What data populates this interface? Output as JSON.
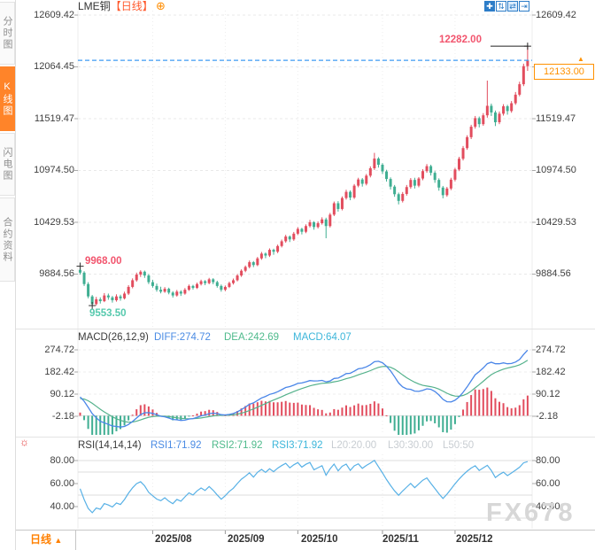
{
  "header": {
    "symbol": "LME铜",
    "period_tag": "【日线】",
    "add_button": "⊕"
  },
  "sidebar": {
    "active_index": 1,
    "tabs": [
      {
        "label": "分时图"
      },
      {
        "label": "K线图"
      },
      {
        "label": "闪电图"
      },
      {
        "label": "合约资料"
      }
    ]
  },
  "toolbar": {
    "icons": [
      {
        "name": "pan-crosshair-icon",
        "glyph": "✚"
      },
      {
        "name": "axis-zoom-icon",
        "glyph": "⇅"
      },
      {
        "name": "scale-toggle-icon",
        "glyph": "⇄"
      },
      {
        "name": "collapse-panel-icon",
        "glyph": "⇥"
      }
    ]
  },
  "main_chart": {
    "axis_left": [
      "12609.42",
      "12064.45",
      "11519.47",
      "10974.50",
      "10429.53",
      "9884.56"
    ],
    "axis_right": [
      "12609.42",
      "11519.47",
      "10974.50",
      "10429.53",
      "9884.56"
    ],
    "price_box_value": "12133.00",
    "price_box_arrow": "▲",
    "session_high_label": "12282.00",
    "first_high_label": "9968.00",
    "low_label": "9553.50"
  },
  "macd_panel": {
    "title": "MACD(26,12,9)",
    "diff": "DIFF:274.72",
    "dea": "DEA:242.69",
    "macd": "MACD:64.07",
    "axis": [
      "274.72",
      "182.42",
      "90.12",
      "-2.18"
    ]
  },
  "rsi_panel": {
    "icon": "☼",
    "title": "RSI(14,14,14)",
    "rsi1": "RSI1:71.92",
    "rsi2": "RSI2:71.92",
    "rsi3": "RSI3:71.92",
    "l20": "L20:20.00",
    "l30": "L30:30.00",
    "l50": "L50:50",
    "axis": [
      "80.00",
      "60.00",
      "40.00"
    ]
  },
  "bottom_bar": {
    "period": "日线",
    "arrow": "▲",
    "dates": [
      "2025/08",
      "2025/09",
      "2025/10",
      "2025/11",
      "2025/12"
    ]
  },
  "watermark": "FX678",
  "colors": {
    "up": "#e24d5e",
    "down": "#3fae92",
    "accent_orange": "#ff8a00",
    "dashed_line_blue": "#3e9bf4",
    "diff_blue": "#4a86e8",
    "dea_green": "#55b28c",
    "rsi_blue": "#58b1e6",
    "label_red": "#f2556e",
    "label_green": "#56c9ad",
    "grid": "#e9e9e9",
    "tick": "#aaaaaa"
  },
  "chart_data": {
    "type": "candlestick",
    "title": "LME铜 日线",
    "price_levels": [
      12609.42,
      12064.45,
      11519.47,
      10974.5,
      10429.53,
      9884.56
    ],
    "macd_levels": [
      274.72,
      182.42,
      90.12,
      -2.18
    ],
    "rsi_axis_levels": [
      80,
      60,
      40
    ],
    "rsi_guide_levels": [
      80,
      70,
      50,
      30
    ],
    "month_ticks": {
      "labels": [
        "2025/08",
        "2025/09",
        "2025/10",
        "2025/11",
        "2025/12"
      ],
      "indices": [
        18,
        36,
        54,
        75,
        93
      ]
    },
    "current_price": 12133.0,
    "session_high": 12282.0,
    "first_high": 9968.0,
    "first_high_index": 0,
    "low": 9553.5,
    "low_index": 3,
    "indicators": {
      "macd_params": [
        26,
        12,
        9
      ],
      "macd_values": {
        "diff": 274.72,
        "dea": 242.69,
        "macd": 64.07
      },
      "rsi_params": [
        14,
        14,
        14
      ],
      "rsi_values": [
        71.92,
        71.92,
        71.92
      ],
      "rsi_lines": {
        "l20": 20.0,
        "l30": 30.0,
        "l50": 50
      },
      "seeds": {
        "ema12": 9940,
        "ema26": 9852,
        "dea": 70,
        "rsi_gain": 25,
        "rsi_loss": 20
      }
    },
    "candles": [
      [
        9930,
        9968,
        9880,
        9900
      ],
      [
        9900,
        9915,
        9760,
        9780
      ],
      [
        9780,
        9800,
        9630,
        9650
      ],
      [
        9650,
        9665,
        9553.5,
        9570
      ],
      [
        9570,
        9645,
        9555,
        9620
      ],
      [
        9620,
        9640,
        9575,
        9600
      ],
      [
        9600,
        9685,
        9590,
        9660
      ],
      [
        9660,
        9680,
        9615,
        9640
      ],
      [
        9640,
        9655,
        9585,
        9610
      ],
      [
        9610,
        9672,
        9595,
        9650
      ],
      [
        9650,
        9668,
        9605,
        9630
      ],
      [
        9630,
        9700,
        9618,
        9680
      ],
      [
        9680,
        9768,
        9665,
        9750
      ],
      [
        9750,
        9840,
        9735,
        9820
      ],
      [
        9820,
        9900,
        9805,
        9880
      ],
      [
        9880,
        9925,
        9855,
        9910
      ],
      [
        9910,
        9922,
        9845,
        9870
      ],
      [
        9870,
        9885,
        9780,
        9800
      ],
      [
        9800,
        9825,
        9742,
        9760
      ],
      [
        9760,
        9785,
        9700,
        9720
      ],
      [
        9720,
        9752,
        9682,
        9700
      ],
      [
        9700,
        9748,
        9688,
        9730
      ],
      [
        9730,
        9742,
        9672,
        9690
      ],
      [
        9690,
        9705,
        9638,
        9660
      ],
      [
        9660,
        9718,
        9648,
        9700
      ],
      [
        9700,
        9715,
        9655,
        9680
      ],
      [
        9680,
        9738,
        9668,
        9720
      ],
      [
        9720,
        9775,
        9708,
        9760
      ],
      [
        9760,
        9772,
        9722,
        9740
      ],
      [
        9740,
        9795,
        9728,
        9780
      ],
      [
        9780,
        9826,
        9765,
        9810
      ],
      [
        9810,
        9822,
        9768,
        9790
      ],
      [
        9790,
        9845,
        9778,
        9830
      ],
      [
        9830,
        9842,
        9778,
        9800
      ],
      [
        9800,
        9815,
        9742,
        9760
      ],
      [
        9760,
        9775,
        9700,
        9720
      ],
      [
        9720,
        9765,
        9705,
        9750
      ],
      [
        9750,
        9805,
        9738,
        9790
      ],
      [
        9790,
        9838,
        9775,
        9820
      ],
      [
        9820,
        9885,
        9808,
        9870
      ],
      [
        9870,
        9935,
        9855,
        9920
      ],
      [
        9920,
        9975,
        9905,
        9960
      ],
      [
        9960,
        10028,
        9945,
        10010
      ],
      [
        10010,
        10022,
        9958,
        9980
      ],
      [
        9980,
        10065,
        9968,
        10050
      ],
      [
        10050,
        10118,
        10035,
        10100
      ],
      [
        10100,
        10112,
        10052,
        10080
      ],
      [
        10080,
        10155,
        10065,
        10140
      ],
      [
        10140,
        10152,
        10088,
        10120
      ],
      [
        10120,
        10195,
        10105,
        10180
      ],
      [
        10180,
        10248,
        10165,
        10230
      ],
      [
        10230,
        10298,
        10215,
        10280
      ],
      [
        10280,
        10292,
        10222,
        10250
      ],
      [
        10250,
        10328,
        10235,
        10310
      ],
      [
        10310,
        10378,
        10295,
        10360
      ],
      [
        10360,
        10372,
        10302,
        10330
      ],
      [
        10330,
        10408,
        10315,
        10390
      ],
      [
        10390,
        10455,
        10375,
        10430
      ],
      [
        10430,
        10442,
        10352,
        10380
      ],
      [
        10380,
        10438,
        10365,
        10420
      ],
      [
        10420,
        10482,
        10405,
        10460
      ],
      [
        10460,
        10478,
        10262,
        10390
      ],
      [
        10390,
        10528,
        10375,
        10510
      ],
      [
        10510,
        10648,
        10495,
        10630
      ],
      [
        10630,
        10652,
        10542,
        10570
      ],
      [
        10570,
        10702,
        10555,
        10685
      ],
      [
        10685,
        10772,
        10668,
        10750
      ],
      [
        10750,
        10765,
        10662,
        10690
      ],
      [
        10690,
        10832,
        10675,
        10815
      ],
      [
        10815,
        10898,
        10798,
        10880
      ],
      [
        10880,
        10895,
        10805,
        10835
      ],
      [
        10835,
        10938,
        10818,
        10920
      ],
      [
        10920,
        11018,
        10902,
        10998
      ],
      [
        10998,
        11160,
        10980,
        11100
      ],
      [
        11100,
        11115,
        11005,
        11035
      ],
      [
        11035,
        11052,
        10938,
        10965
      ],
      [
        10965,
        10982,
        10858,
        10885
      ],
      [
        10885,
        10902,
        10775,
        10805
      ],
      [
        10805,
        10822,
        10698,
        10725
      ],
      [
        10725,
        10742,
        10618,
        10655
      ],
      [
        10655,
        10748,
        10638,
        10728
      ],
      [
        10728,
        10822,
        10710,
        10800
      ],
      [
        10800,
        10895,
        10782,
        10875
      ],
      [
        10875,
        10898,
        10785,
        10815
      ],
      [
        10815,
        10905,
        10798,
        10890
      ],
      [
        10890,
        10988,
        10872,
        10968
      ],
      [
        10968,
        11042,
        10950,
        11020
      ],
      [
        11020,
        11035,
        10922,
        10950
      ],
      [
        10950,
        10968,
        10845,
        10875
      ],
      [
        10875,
        10892,
        10762,
        10795
      ],
      [
        10795,
        10812,
        10682,
        10715
      ],
      [
        10715,
        10802,
        10698,
        10785
      ],
      [
        10785,
        10898,
        10768,
        10878
      ],
      [
        10878,
        11002,
        10860,
        10985
      ],
      [
        10985,
        11118,
        10968,
        11098
      ],
      [
        11098,
        11232,
        11080,
        11210
      ],
      [
        11210,
        11345,
        11192,
        11325
      ],
      [
        11325,
        11455,
        11305,
        11435
      ],
      [
        11435,
        11548,
        11415,
        11525
      ],
      [
        11525,
        11542,
        11428,
        11462
      ],
      [
        11462,
        11578,
        11445,
        11555
      ],
      [
        11555,
        11920,
        11530,
        11655
      ],
      [
        11655,
        11678,
        11548,
        11585
      ],
      [
        11585,
        11605,
        11442,
        11482
      ],
      [
        11482,
        11595,
        11462,
        11572
      ],
      [
        11572,
        11672,
        11552,
        11650
      ],
      [
        11650,
        11665,
        11562,
        11600
      ],
      [
        11600,
        11705,
        11582,
        11682
      ],
      [
        11682,
        11800,
        11665,
        11772
      ],
      [
        11772,
        11908,
        11755,
        11882
      ],
      [
        11882,
        12098,
        11862,
        12072
      ],
      [
        12072,
        12282,
        12022,
        12133
      ]
    ]
  }
}
